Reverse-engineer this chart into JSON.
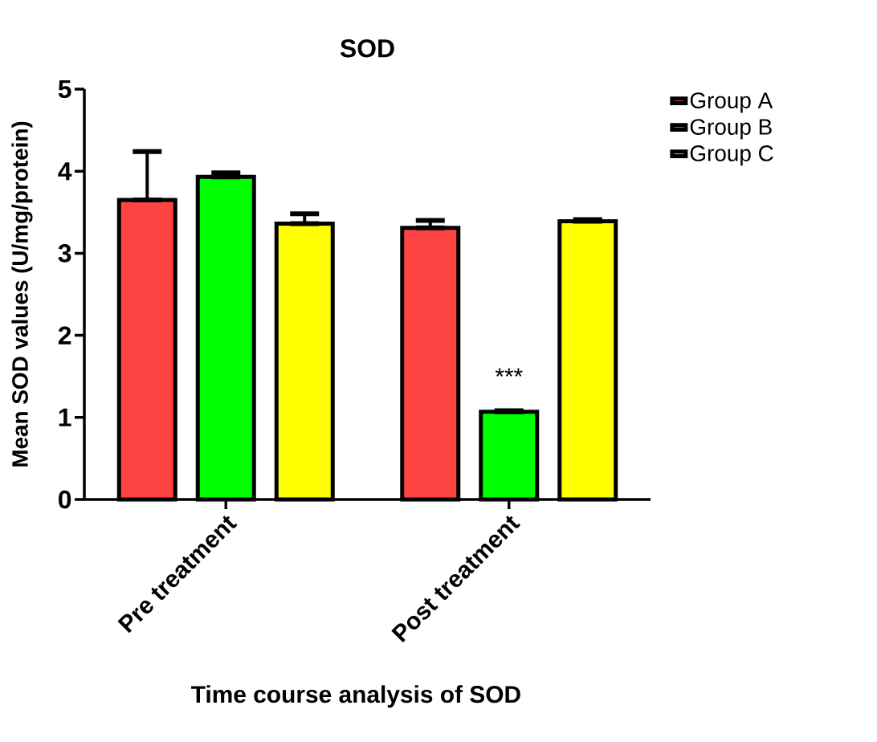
{
  "chart_data": {
    "type": "bar",
    "title": "SOD",
    "xlabel": "Time course analysis of SOD",
    "ylabel": "Mean SOD values (U/mg/protein)",
    "categories": [
      "Pre treatment",
      "Post treatment"
    ],
    "series": [
      {
        "name": "Group A",
        "color": "#ff4444",
        "values": [
          3.65,
          3.31
        ],
        "errors": [
          [
            3.65,
            4.24
          ],
          [
            3.31,
            3.4
          ]
        ]
      },
      {
        "name": "Group B",
        "color": "#00ff00",
        "values": [
          3.93,
          1.07
        ],
        "errors": [
          [
            3.93,
            3.98
          ],
          [
            1.07,
            1.08
          ]
        ]
      },
      {
        "name": "Group C",
        "color": "#ffff00",
        "values": [
          3.36,
          3.39
        ],
        "errors": [
          [
            3.36,
            3.48
          ],
          [
            3.39,
            3.41
          ]
        ]
      }
    ],
    "ylim": [
      0,
      5
    ],
    "yticks": [
      0,
      1,
      2,
      3,
      4,
      5
    ],
    "legend": "top right",
    "annotations": [
      {
        "text": "***",
        "x": "Post treatment",
        "y": 1.5
      }
    ]
  }
}
